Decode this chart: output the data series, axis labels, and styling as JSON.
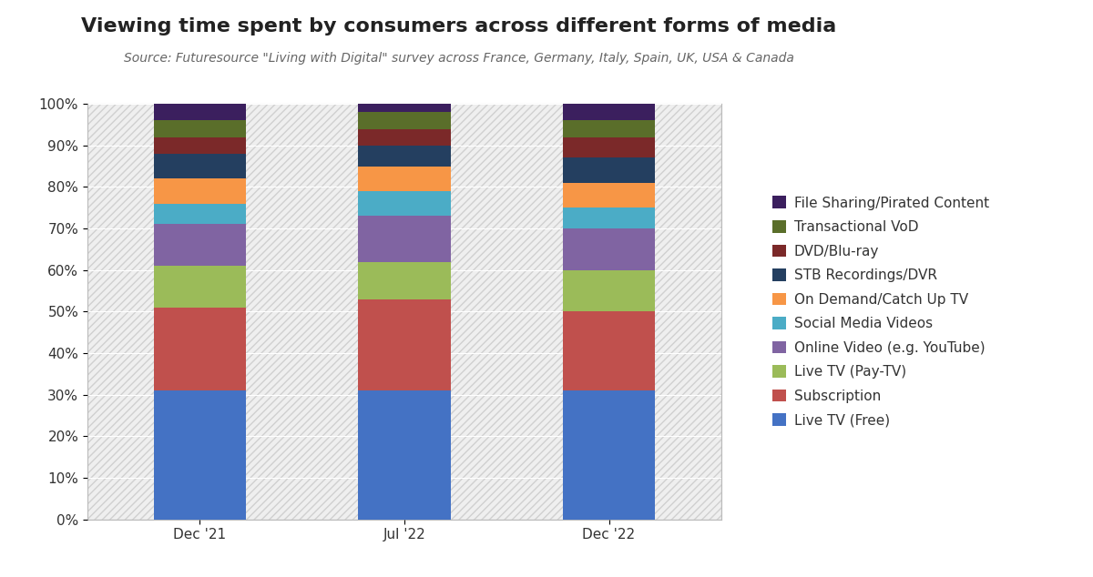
{
  "title": "Viewing time spent by consumers across different forms of media",
  "subtitle": "Source: Futuresource \"Living with Digital\" survey across France, Germany, Italy, Spain, UK, USA & Canada",
  "categories": [
    "Dec '21",
    "Jul '22",
    "Dec '22"
  ],
  "segments": [
    {
      "label": "Live TV (Free)",
      "color": "#4472C4",
      "values": [
        31,
        31,
        31
      ]
    },
    {
      "label": "Subscription",
      "color": "#C0504D",
      "values": [
        20,
        22,
        19
      ]
    },
    {
      "label": "Live TV (Pay-TV)",
      "color": "#9BBB59",
      "values": [
        10,
        9,
        10
      ]
    },
    {
      "label": "Online Video (e.g. YouTube)",
      "color": "#8064A2",
      "values": [
        10,
        11,
        10
      ]
    },
    {
      "label": "Social Media Videos",
      "color": "#4BACC6",
      "values": [
        5,
        6,
        5
      ]
    },
    {
      "label": "On Demand/Catch Up TV",
      "color": "#F79646",
      "values": [
        6,
        6,
        6
      ]
    },
    {
      "label": "STB Recordings/DVR",
      "color": "#243F60",
      "values": [
        6,
        5,
        6
      ]
    },
    {
      "label": "DVD/Blu-ray",
      "color": "#7B2929",
      "values": [
        4,
        4,
        5
      ]
    },
    {
      "label": "Transactional VoD",
      "color": "#5A6E2A",
      "values": [
        4,
        4,
        4
      ]
    },
    {
      "label": "File Sharing/Pirated Content",
      "color": "#3B1F5E",
      "values": [
        4,
        2,
        4
      ]
    }
  ],
  "background_color": "#FFFFFF",
  "plot_bg_color": "#EFEFEF",
  "ylim": [
    0,
    100
  ],
  "bar_width": 0.45,
  "title_fontsize": 16,
  "subtitle_fontsize": 10,
  "legend_fontsize": 11,
  "tick_fontsize": 11
}
